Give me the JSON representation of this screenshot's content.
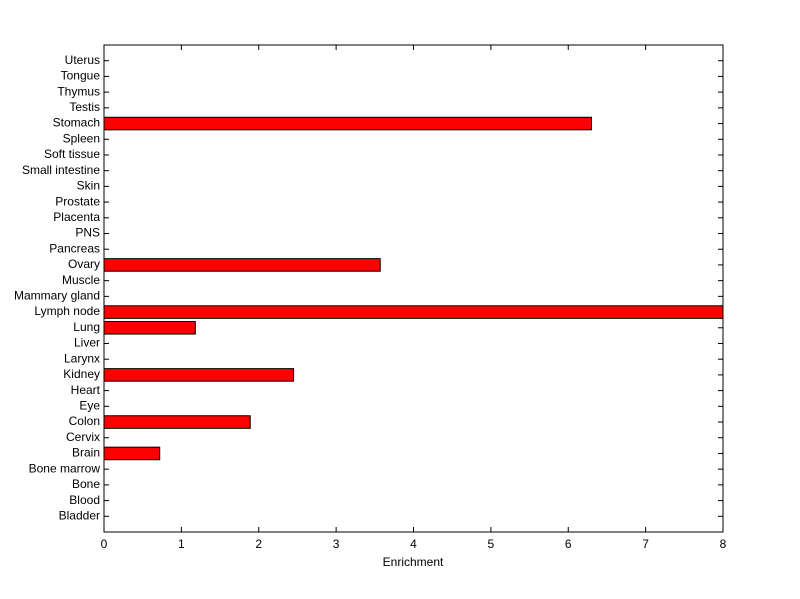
{
  "chart_data": {
    "type": "barh",
    "xlabel": "Enrichment",
    "categories": [
      "Bladder",
      "Blood",
      "Bone",
      "Bone marrow",
      "Brain",
      "Cervix",
      "Colon",
      "Eye",
      "Heart",
      "Kidney",
      "Larynx",
      "Liver",
      "Lung",
      "Lymph node",
      "Mammary gland",
      "Muscle",
      "Ovary",
      "Pancreas",
      "PNS",
      "Placenta",
      "Prostate",
      "Skin",
      "Small intestine",
      "Soft tissue",
      "Spleen",
      "Stomach",
      "Testis",
      "Thymus",
      "Tongue",
      "Uterus"
    ],
    "values": [
      0,
      0,
      0,
      0,
      0.72,
      0,
      1.89,
      0,
      0,
      2.45,
      0,
      0,
      1.18,
      8,
      0,
      0,
      3.57,
      0,
      0,
      0,
      0,
      0,
      0,
      0,
      0,
      6.3,
      0,
      0,
      0,
      0
    ],
    "color": "#ff0000",
    "xlim": [
      0,
      8
    ],
    "xticks": [
      0,
      1,
      2,
      3,
      4,
      5,
      6,
      7,
      8
    ],
    "grid": false
  }
}
